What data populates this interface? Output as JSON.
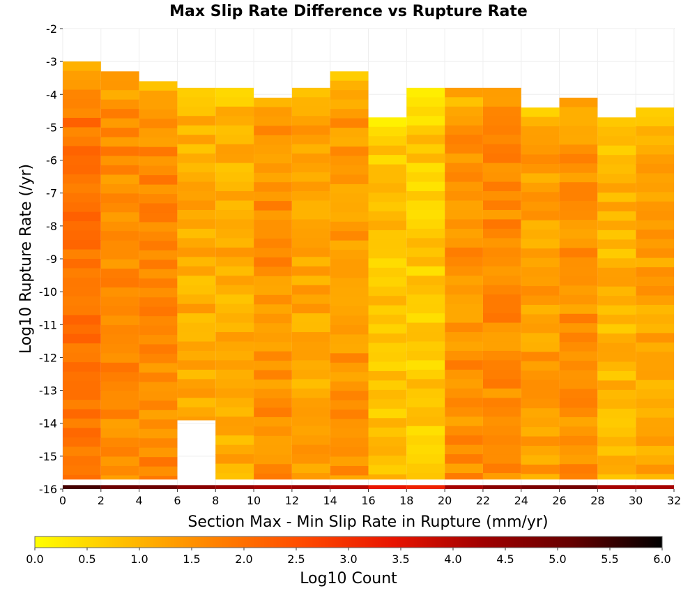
{
  "chart_data": {
    "type": "heatmap",
    "title": "Max Slip Rate Difference vs Rupture Rate",
    "xlabel": "Section Max - Min Slip Rate in Rupture (mm/yr)",
    "ylabel": "Log10 Rupture Rate (/yr)",
    "colorbar_label": "Log10 Count",
    "xlim": [
      0,
      32
    ],
    "ylim": [
      -16,
      -2
    ],
    "x_bin_width": 2,
    "y_bin_height": 0.2857,
    "x_ticks": [
      "0",
      "2",
      "4",
      "6",
      "8",
      "10",
      "12",
      "14",
      "16",
      "18",
      "20",
      "22",
      "24",
      "26",
      "28",
      "30",
      "32"
    ],
    "y_ticks": [
      "-2",
      "-3",
      "-4",
      "-5",
      "-6",
      "-7",
      "-8",
      "-9",
      "-10",
      "-11",
      "-12",
      "-13",
      "-14",
      "-15",
      "-16"
    ],
    "colorbar_range": [
      0.0,
      6.0
    ],
    "colorbar_ticks": [
      "0.0",
      "0.5",
      "1.0",
      "1.5",
      "2.0",
      "2.5",
      "3.0",
      "3.5",
      "4.0",
      "4.5",
      "5.0",
      "5.5",
      "6.0"
    ],
    "colorscale": [
      "#ffff00",
      "#ffbe00",
      "#ff8200",
      "#ff4a00",
      "#e81400",
      "#a00000",
      "#640000",
      "#000000"
    ],
    "grid": true,
    "legend": "bottom",
    "bottom_row_note": "row nearest -16 holds the largest counts",
    "columns": [
      {
        "x": 0,
        "y_top": -3.0,
        "y_bottom": -16.0
      },
      {
        "x": 2,
        "y_top": -3.3,
        "y_bottom": -16.0
      },
      {
        "x": 4,
        "y_top": -3.6,
        "y_bottom": -16.0
      },
      {
        "x": 6,
        "y_top": -3.8,
        "y_bottom": -14.2
      },
      {
        "x": 8,
        "y_top": -3.8,
        "y_bottom": -16.0
      },
      {
        "x": 10,
        "y_top": -4.1,
        "y_bottom": -16.0
      },
      {
        "x": 12,
        "y_top": -3.8,
        "y_bottom": -16.0
      },
      {
        "x": 14,
        "y_top": -3.3,
        "y_bottom": -16.0
      },
      {
        "x": 16,
        "y_top": -4.7,
        "y_bottom": -16.0
      },
      {
        "x": 18,
        "y_top": -3.8,
        "y_bottom": -16.0
      },
      {
        "x": 20,
        "y_top": -3.8,
        "y_bottom": -16.0
      },
      {
        "x": 22,
        "y_top": -3.8,
        "y_bottom": -16.0
      },
      {
        "x": 24,
        "y_top": -4.4,
        "y_bottom": -16.0
      },
      {
        "x": 26,
        "y_top": -4.1,
        "y_bottom": -16.0
      },
      {
        "x": 28,
        "y_top": -4.7,
        "y_bottom": -16.0
      },
      {
        "x": 30,
        "y_top": -4.4,
        "y_bottom": -16.0
      }
    ],
    "column_typical_log10_count": [
      1.9,
      1.6,
      1.6,
      1.1,
      1.1,
      1.5,
      1.2,
      1.4,
      0.8,
      0.7,
      1.5,
      1.6,
      1.3,
      1.5,
      1.0,
      1.2
    ],
    "bottom_row_log10_count": [
      5.4,
      5.0,
      5.0,
      4.6,
      4.4,
      4.2,
      4.3,
      4.0,
      3.4,
      3.2,
      4.2,
      4.6,
      4.8,
      4.9,
      4.2,
      4.2
    ]
  }
}
